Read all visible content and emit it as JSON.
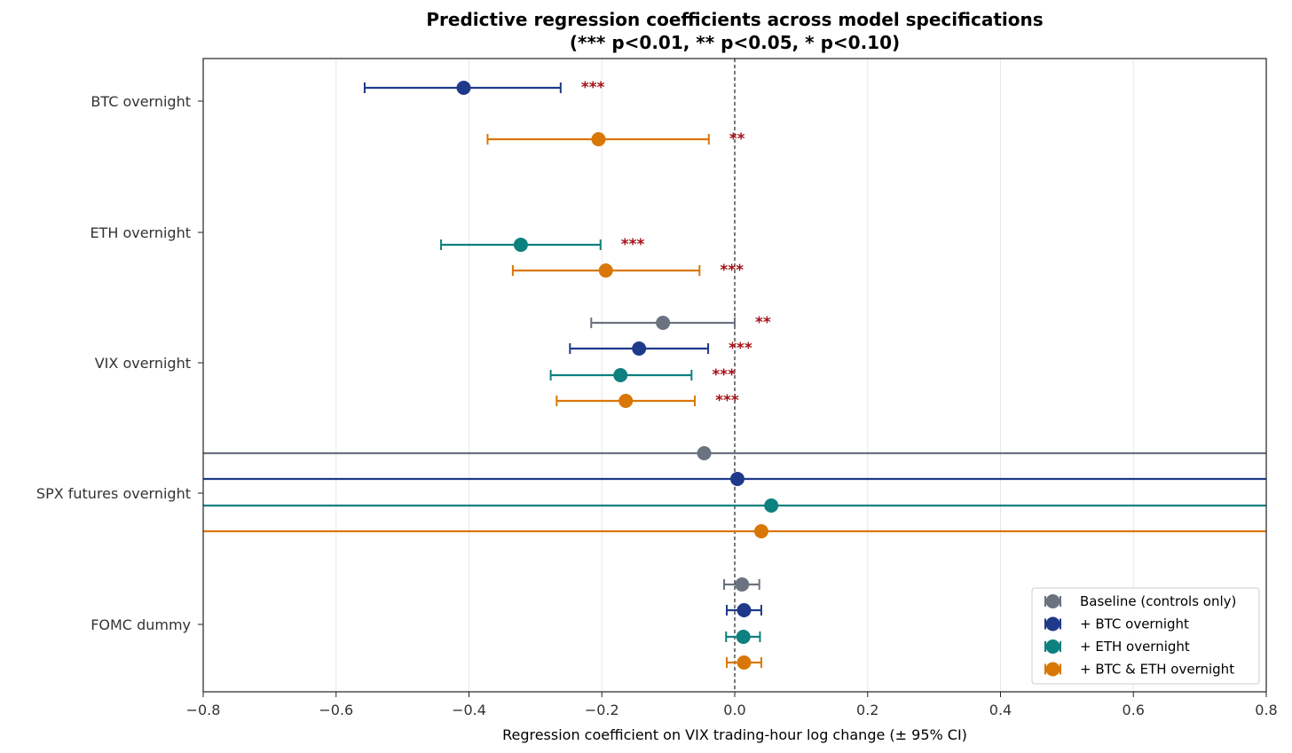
{
  "chart_data": {
    "type": "scatter",
    "subtype": "coefficient-plot",
    "title_line1": "Predictive regression coefficients across model specifications",
    "title_line2": "(*** p<0.01,  ** p<0.05,  * p<0.10)",
    "xlabel": "Regression coefficient on VIX trading-hour log change  (± 95% CI)",
    "xlim": [
      -0.8,
      0.8
    ],
    "xticks": [
      -0.8,
      -0.6,
      -0.4,
      -0.2,
      0.0,
      0.2,
      0.4,
      0.6,
      0.8
    ],
    "xtick_labels": [
      "−0.8",
      "−0.6",
      "−0.4",
      "−0.2",
      "0.0",
      "0.2",
      "0.4",
      "0.6",
      "0.8"
    ],
    "grid": "vertical",
    "reference_line": 0.0,
    "legend_position": "lower-right",
    "categories": [
      "BTC overnight",
      "ETH overnight",
      "VIX overnight",
      "SPX futures overnight",
      "FOMC dummy"
    ],
    "series": [
      {
        "name": "Baseline (controls only)",
        "color": "#6b7280",
        "points": [
          {
            "category": "VIX overnight",
            "coef": -0.108,
            "ci": [
              -0.216,
              0.0
            ],
            "stars": "**"
          },
          {
            "category": "SPX futures overnight",
            "coef": -0.046,
            "ci": [
              -1.5,
              1.5
            ],
            "stars": ""
          },
          {
            "category": "FOMC dummy",
            "coef": 0.011,
            "ci": [
              -0.016,
              0.037
            ],
            "stars": ""
          }
        ]
      },
      {
        "name": "+ BTC overnight",
        "color": "#1f3a8a",
        "points": [
          {
            "category": "BTC overnight",
            "coef": -0.408,
            "ci": [
              -0.557,
              -0.262
            ],
            "stars": "***"
          },
          {
            "category": "VIX overnight",
            "coef": -0.144,
            "ci": [
              -0.248,
              -0.04
            ],
            "stars": "***"
          },
          {
            "category": "SPX futures overnight",
            "coef": 0.004,
            "ci": [
              -1.5,
              1.5
            ],
            "stars": ""
          },
          {
            "category": "FOMC dummy",
            "coef": 0.014,
            "ci": [
              -0.012,
              0.04
            ],
            "stars": ""
          }
        ]
      },
      {
        "name": "+ ETH overnight",
        "color": "#0d8080",
        "points": [
          {
            "category": "ETH overnight",
            "coef": -0.322,
            "ci": [
              -0.442,
              -0.202
            ],
            "stars": "***"
          },
          {
            "category": "VIX overnight",
            "coef": -0.172,
            "ci": [
              -0.277,
              -0.065
            ],
            "stars": "***"
          },
          {
            "category": "SPX futures overnight",
            "coef": 0.055,
            "ci": [
              -1.5,
              1.5
            ],
            "stars": ""
          },
          {
            "category": "FOMC dummy",
            "coef": 0.013,
            "ci": [
              -0.013,
              0.038
            ],
            "stars": ""
          }
        ]
      },
      {
        "name": "+ BTC & ETH overnight",
        "color": "#d97706",
        "points": [
          {
            "category": "BTC overnight",
            "coef": -0.205,
            "ci": [
              -0.372,
              -0.039
            ],
            "stars": "**"
          },
          {
            "category": "ETH overnight",
            "coef": -0.194,
            "ci": [
              -0.334,
              -0.053
            ],
            "stars": "***"
          },
          {
            "category": "VIX overnight",
            "coef": -0.164,
            "ci": [
              -0.268,
              -0.06
            ],
            "stars": "***"
          },
          {
            "category": "SPX futures overnight",
            "coef": 0.04,
            "ci": [
              -1.5,
              1.5
            ],
            "stars": ""
          },
          {
            "category": "FOMC dummy",
            "coef": 0.014,
            "ci": [
              -0.012,
              0.04
            ],
            "stars": ""
          }
        ]
      }
    ]
  }
}
